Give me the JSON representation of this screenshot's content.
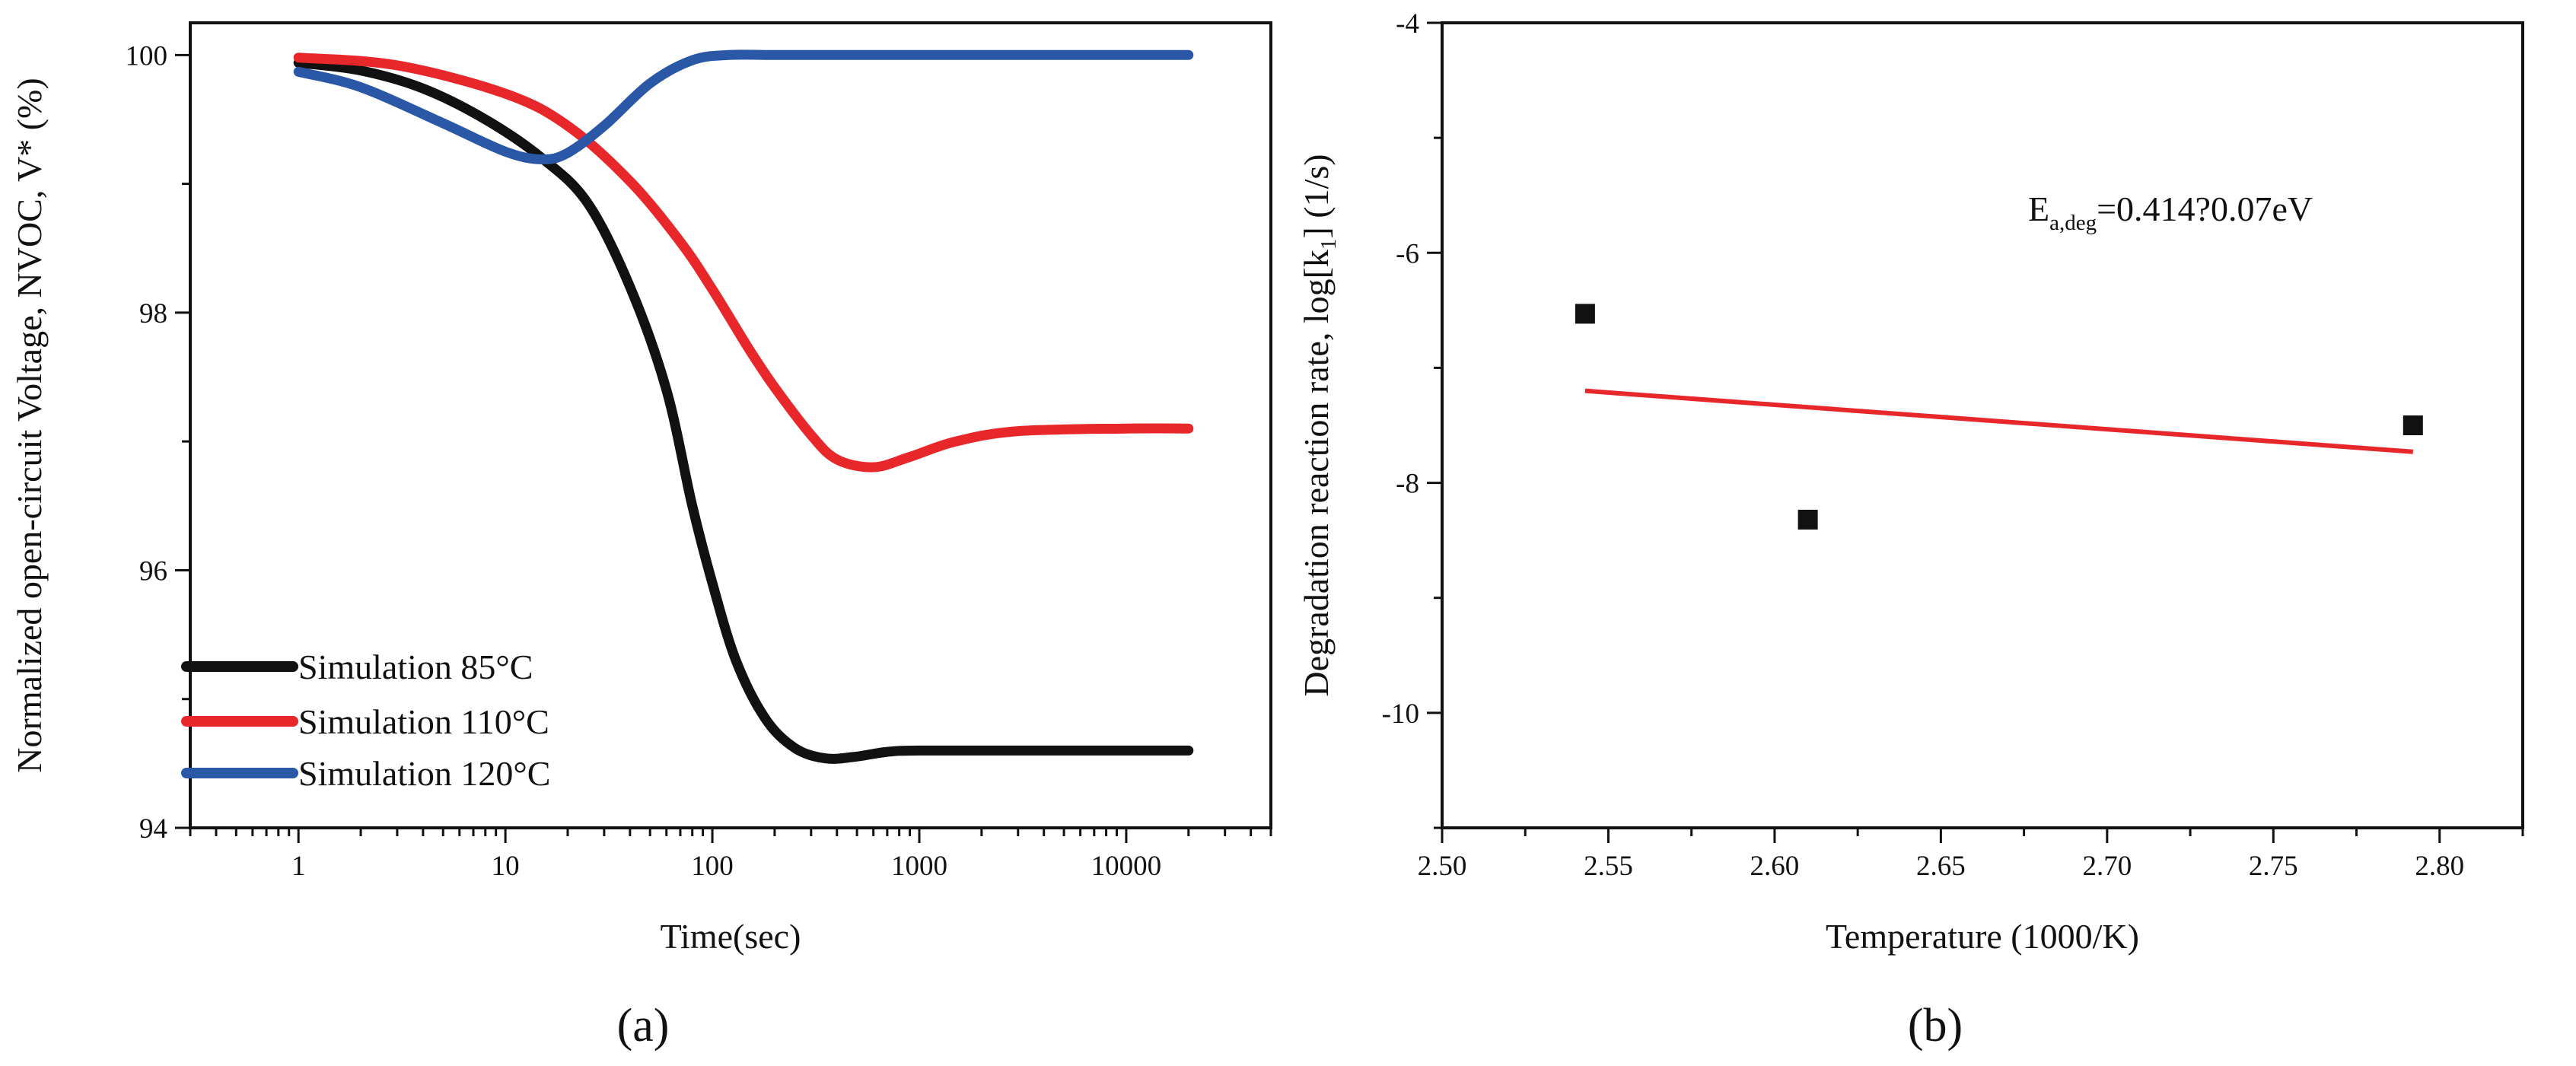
{
  "chart_data": [
    {
      "type": "line",
      "panel_label": "(a)",
      "xlabel": "Time(sec)",
      "ylabel": "Normalized open-circuit Voltage, NVOC, V* (%)",
      "xscale": "log",
      "xlim": [
        0.3,
        50000
      ],
      "ylim": [
        94,
        100.25
      ],
      "x_ticks": [
        1,
        10,
        100,
        1000,
        10000
      ],
      "x_tick_labels": [
        "1",
        "10",
        "100",
        "1000",
        "10000"
      ],
      "y_ticks": [
        94,
        96,
        98,
        100
      ],
      "y_tick_labels": [
        "94",
        "96",
        "98",
        "100"
      ],
      "grid": false,
      "legend_position": "bottom-left",
      "series": [
        {
          "name": "Simulation 85°C",
          "color": "#111111",
          "x": [
            1,
            2,
            4,
            8,
            15,
            25,
            40,
            60,
            80,
            100,
            130,
            180,
            250,
            350,
            480,
            700,
            1000,
            3000,
            10000,
            20000
          ],
          "y": [
            99.94,
            99.88,
            99.74,
            99.5,
            99.2,
            98.85,
            98.2,
            97.4,
            96.5,
            95.9,
            95.3,
            94.85,
            94.62,
            94.54,
            94.55,
            94.59,
            94.6,
            94.6,
            94.6,
            94.6
          ]
        },
        {
          "name": "Simulation 110°C",
          "color": "#e8272a",
          "x": [
            1,
            3,
            10,
            20,
            40,
            70,
            100,
            150,
            200,
            300,
            400,
            600,
            900,
            1500,
            3000,
            10000,
            20000
          ],
          "y": [
            99.98,
            99.92,
            99.7,
            99.45,
            99.02,
            98.55,
            98.18,
            97.72,
            97.42,
            97.05,
            96.86,
            96.8,
            96.88,
            97.0,
            97.08,
            97.1,
            97.1
          ]
        },
        {
          "name": "Simulation 120°C",
          "color": "#2b58a6",
          "x": [
            1,
            2,
            5,
            10,
            15,
            20,
            30,
            50,
            80,
            120,
            200,
            500,
            1000,
            10000,
            20000
          ],
          "y": [
            99.87,
            99.75,
            99.47,
            99.25,
            99.19,
            99.24,
            99.45,
            99.78,
            99.96,
            100.0,
            100.0,
            100.0,
            100.0,
            100.0,
            100.0
          ]
        }
      ]
    },
    {
      "type": "scatter",
      "panel_label": "(b)",
      "xlabel": "Temperature (1000/K)",
      "ylabel": "Degradation reaction rate, log[k1] (1/s)",
      "ylabel_parts": [
        "Degradation reaction rate, log[k",
        "1",
        "] (1/s)"
      ],
      "xlim": [
        2.5,
        2.825
      ],
      "ylim": [
        -11,
        -4
      ],
      "x_ticks": [
        2.5,
        2.55,
        2.6,
        2.65,
        2.7,
        2.75,
        2.8
      ],
      "x_tick_labels": [
        "2.50",
        "2.55",
        "2.60",
        "2.65",
        "2.70",
        "2.75",
        "2.80"
      ],
      "y_ticks": [
        -4,
        -6,
        -8,
        -10
      ],
      "y_tick_labels": [
        "-4",
        "-6",
        "-8",
        "-10"
      ],
      "grid": false,
      "points": {
        "x": [
          2.543,
          2.61,
          2.792
        ],
        "y": [
          -6.53,
          -8.32,
          -7.5
        ],
        "color": "#111111"
      },
      "fit_line": {
        "x": [
          2.543,
          2.792
        ],
        "y": [
          -7.2,
          -7.73
        ],
        "color": "#e8272a"
      },
      "annotation": {
        "text": "Ea,deg=0.414?0.07eV",
        "parts": [
          "E",
          "a,deg",
          "=0.414?0.07eV"
        ]
      }
    }
  ]
}
